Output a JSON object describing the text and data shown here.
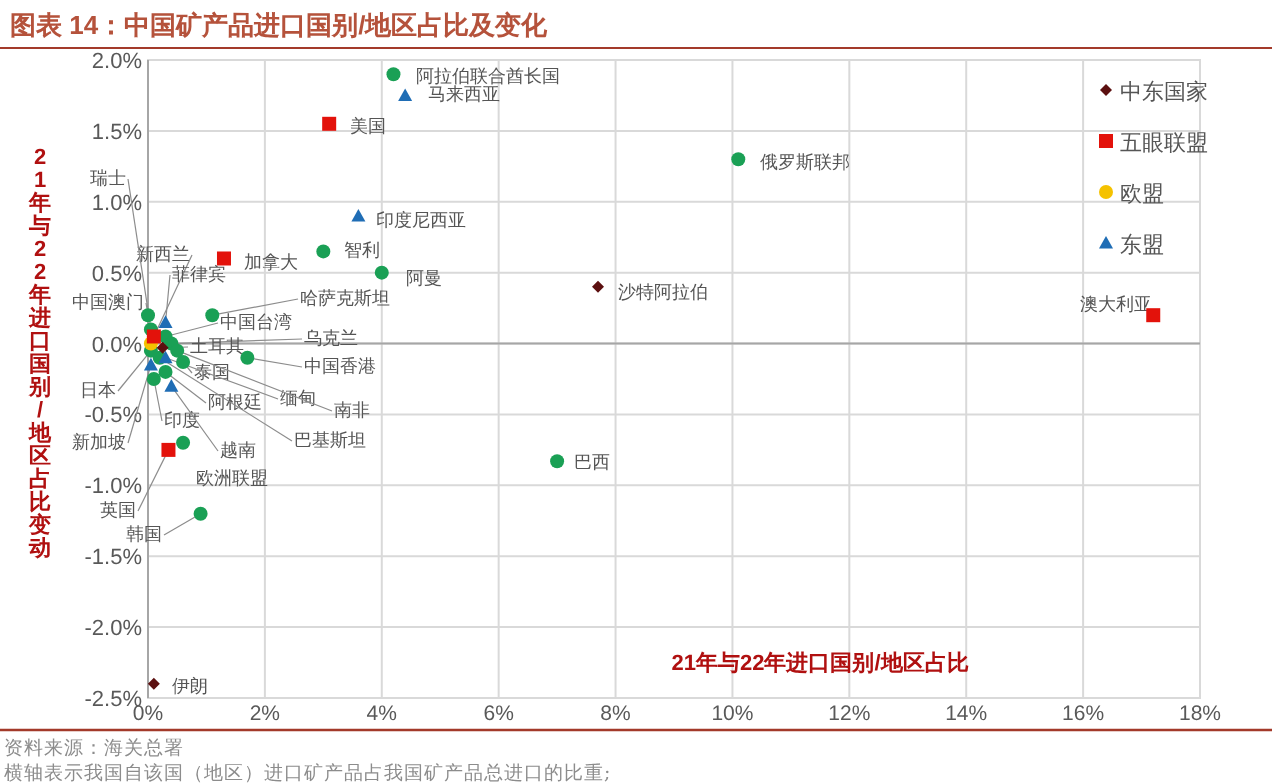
{
  "chart_data": {
    "type": "scatter",
    "title": "图表 14：中国矿产品进口国别/地区占比及变化",
    "xlabel": "21年与22年进口国别/地区占比",
    "ylabel": "21年与22年进口国别/地区占比变动",
    "xlim": [
      0,
      18
    ],
    "ylim": [
      -2.5,
      2.0
    ],
    "xticks": [
      {
        "value": 0,
        "label": "0%"
      },
      {
        "value": 2,
        "label": "2%"
      },
      {
        "value": 4,
        "label": "4%"
      },
      {
        "value": 6,
        "label": "6%"
      },
      {
        "value": 8,
        "label": "8%"
      },
      {
        "value": 10,
        "label": "10%"
      },
      {
        "value": 12,
        "label": "12%"
      },
      {
        "value": 14,
        "label": "14%"
      },
      {
        "value": 16,
        "label": "16%"
      },
      {
        "value": 18,
        "label": "18%"
      }
    ],
    "yticks": [
      {
        "value": -2.5,
        "label": "-2.5%"
      },
      {
        "value": -2.0,
        "label": "-2.0%"
      },
      {
        "value": -1.5,
        "label": "-1.5%"
      },
      {
        "value": -1.0,
        "label": "-1.0%"
      },
      {
        "value": -0.5,
        "label": "-0.5%"
      },
      {
        "value": 0,
        "label": "0.0%"
      },
      {
        "value": 0.5,
        "label": "0.5%"
      },
      {
        "value": 1.0,
        "label": "1.0%"
      },
      {
        "value": 1.5,
        "label": "1.5%"
      },
      {
        "value": 2.0,
        "label": "2.0%"
      }
    ],
    "grid": true,
    "legend": "top right",
    "series": [
      {
        "name": "中东国家",
        "color": "#5c1010",
        "marker": "diamond",
        "x": [
          7.7,
          0.1,
          0.25
        ],
        "values": [
          0.4,
          -2.4,
          -0.03
        ]
      },
      {
        "name": "五眼联盟",
        "color": "#e3120b",
        "marker": "square",
        "x": [
          3.1,
          1.3,
          17.2,
          0.35,
          0.1
        ],
        "values": [
          1.55,
          0.6,
          0.2,
          -0.75,
          0.05
        ]
      },
      {
        "name": "欧盟",
        "color": "#f5c200",
        "marker": "circle",
        "x": [
          0.05
        ],
        "values": [
          0.0
        ]
      },
      {
        "name": "东盟",
        "color": "#1f6db5",
        "marker": "triangle",
        "x": [
          4.4,
          3.6,
          0.4,
          0.05,
          0.3,
          0.3
        ],
        "values": [
          1.75,
          0.9,
          -0.3,
          -0.15,
          0.15,
          -0.1
        ]
      },
      {
        "color": "#1aa055",
        "marker": "circle",
        "x": [
          4.2,
          10.1,
          3.0,
          4.0,
          1.1,
          0.3,
          0.4,
          1.7,
          0.6,
          0.5,
          0.3,
          0.2,
          0.1,
          0.6,
          0.9,
          7.0,
          0.05,
          0.0,
          0.05
        ],
        "values": [
          1.9,
          1.3,
          0.65,
          0.5,
          0.2,
          0.05,
          0.0,
          -0.1,
          -0.13,
          -0.05,
          -0.2,
          -0.1,
          -0.25,
          -0.7,
          -1.2,
          -0.83,
          -0.05,
          0.2,
          0.1
        ]
      }
    ],
    "annotations": [
      {
        "text": "阿拉伯联合酋长国",
        "x": 4.2,
        "y": 1.9
      },
      {
        "text": "马来西亚",
        "x": 4.4,
        "y": 1.75
      },
      {
        "text": "美国",
        "x": 3.1,
        "y": 1.55
      },
      {
        "text": "俄罗斯联邦",
        "x": 10.1,
        "y": 1.3
      },
      {
        "text": "印度尼西亚",
        "x": 3.6,
        "y": 0.9
      },
      {
        "text": "智利",
        "x": 3.0,
        "y": 0.65
      },
      {
        "text": "阿曼",
        "x": 4.0,
        "y": 0.5
      },
      {
        "text": "加拿大",
        "x": 1.3,
        "y": 0.6
      },
      {
        "text": "沙特阿拉伯",
        "x": 7.7,
        "y": 0.4
      },
      {
        "text": "澳大利亚",
        "x": 17.2,
        "y": 0.2
      },
      {
        "text": "哈萨克斯坦",
        "x": 1.1,
        "y": 0.2
      },
      {
        "text": "中国台湾",
        "x": 0.3,
        "y": 0.05
      },
      {
        "text": "乌克兰",
        "x": 0.4,
        "y": 0.0
      },
      {
        "text": "中国香港",
        "x": 1.7,
        "y": -0.1
      },
      {
        "text": "土耳其",
        "x": 0.25,
        "y": -0.03
      },
      {
        "text": "泰国",
        "x": 0.6,
        "y": -0.13
      },
      {
        "text": "缅甸",
        "x": 0.3,
        "y": -0.1
      },
      {
        "text": "南非",
        "x": 0.5,
        "y": -0.05
      },
      {
        "text": "阿根廷",
        "x": 0.3,
        "y": -0.2
      },
      {
        "text": "巴基斯坦",
        "x": 0.2,
        "y": -0.1
      },
      {
        "text": "印度",
        "x": 0.1,
        "y": -0.25
      },
      {
        "text": "新加坡",
        "x": 0.05,
        "y": -0.15
      },
      {
        "text": "越南",
        "x": 0.4,
        "y": -0.3
      },
      {
        "text": "欧洲联盟",
        "x": 0.6,
        "y": -0.7
      },
      {
        "text": "英国",
        "x": 0.35,
        "y": -0.75
      },
      {
        "text": "韩国",
        "x": 0.9,
        "y": -1.2
      },
      {
        "text": "巴西",
        "x": 7.0,
        "y": -0.83
      },
      {
        "text": "伊朗",
        "x": 0.1,
        "y": -2.4
      },
      {
        "text": "日本",
        "x": 0.05,
        "y": -0.05
      },
      {
        "text": "中国澳门",
        "x": 0.0,
        "y": 0.2
      },
      {
        "text": "新西兰",
        "x": 0.1,
        "y": 0.05
      },
      {
        "text": "菲律宾",
        "x": 0.3,
        "y": 0.15
      },
      {
        "text": "瑞士",
        "x": 0.05,
        "y": 0.1
      },
      "资料来源：海关总署",
      "横轴表示我国自该国（地区）进口矿产品占我国矿产品总进口的比重;"
    ]
  }
}
